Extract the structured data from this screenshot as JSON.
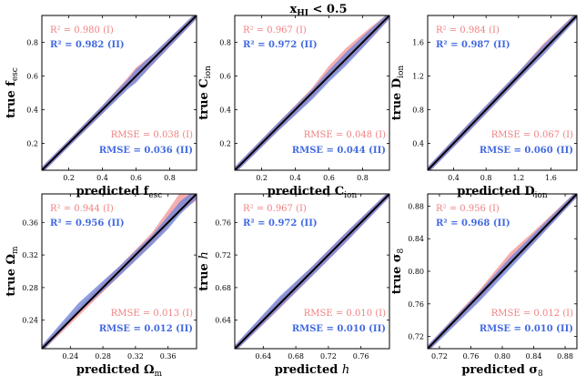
{
  "figure": {
    "title": "x",
    "title_sub": "HI",
    "title_rest": " < 0.5",
    "colors": {
      "model_I": "#f08080",
      "model_II": "#4169e1",
      "line": "#000000",
      "band_I": "#f4a0a0",
      "band_II": "#6a80d8"
    }
  },
  "chart_data": [
    {
      "type": "line",
      "xlabel": "predicted f",
      "xlabel_sub": "esc",
      "xlabel_italic": false,
      "ylabel": "true f",
      "ylabel_sub": "esc",
      "ylabel_italic": false,
      "xlim": [
        0.04,
        0.96
      ],
      "ylim": [
        0.04,
        0.96
      ],
      "xticks": [
        0.2,
        0.4,
        0.6,
        0.8
      ],
      "xtick_labels": [
        "0.2",
        "0.4",
        "0.6",
        "0.8"
      ],
      "yticks": [
        0.2,
        0.4,
        0.6,
        0.8
      ],
      "ytick_labels": [
        "0.2",
        "0.4",
        "0.6",
        "0.8"
      ],
      "r2_I": "R² = 0.980 (I)",
      "r2_II": "R² = 0.982 (II)",
      "rmse_I": "RMSE = 0.038 (I)",
      "rmse_II": "RMSE = 0.036 (II)",
      "series": [
        {
          "name": "I",
          "x": [
            0.04,
            0.2,
            0.4,
            0.55,
            0.6,
            0.7,
            0.96
          ],
          "y": [
            0.04,
            0.2,
            0.4,
            0.56,
            0.61,
            0.7,
            0.96
          ],
          "halfwidth": [
            0.02,
            0.02,
            0.025,
            0.03,
            0.04,
            0.03,
            0.02
          ]
        },
        {
          "name": "II",
          "x": [
            0.04,
            0.2,
            0.4,
            0.55,
            0.6,
            0.7,
            0.96
          ],
          "y": [
            0.04,
            0.2,
            0.4,
            0.55,
            0.6,
            0.7,
            0.96
          ],
          "halfwidth": [
            0.02,
            0.02,
            0.025,
            0.03,
            0.04,
            0.03,
            0.02
          ]
        }
      ]
    },
    {
      "type": "line",
      "xlabel": "predicted C",
      "xlabel_sub": "ion",
      "xlabel_italic": false,
      "ylabel": "true C",
      "ylabel_sub": "ion",
      "ylabel_italic": false,
      "xlim": [
        0.04,
        0.96
      ],
      "ylim": [
        0.04,
        0.96
      ],
      "xticks": [
        0.2,
        0.4,
        0.6,
        0.8
      ],
      "xtick_labels": [
        "0.2",
        "0.4",
        "0.6",
        "0.8"
      ],
      "yticks": [
        0.2,
        0.4,
        0.6,
        0.8
      ],
      "ytick_labels": [
        "0.2",
        "0.4",
        "0.6",
        "0.8"
      ],
      "r2_I": "R² = 0.967 (I)",
      "r2_II": "R² = 0.972 (II)",
      "rmse_I": "RMSE = 0.048 (I)",
      "rmse_II": "RMSE = 0.044 (II)",
      "series": [
        {
          "name": "I",
          "x": [
            0.04,
            0.3,
            0.5,
            0.6,
            0.7,
            0.8,
            0.96
          ],
          "y": [
            0.04,
            0.3,
            0.5,
            0.62,
            0.72,
            0.81,
            0.96
          ],
          "halfwidth": [
            0.02,
            0.025,
            0.03,
            0.04,
            0.045,
            0.04,
            0.02
          ]
        },
        {
          "name": "II",
          "x": [
            0.04,
            0.3,
            0.5,
            0.6,
            0.7,
            0.8,
            0.96
          ],
          "y": [
            0.04,
            0.3,
            0.49,
            0.6,
            0.7,
            0.8,
            0.96
          ],
          "halfwidth": [
            0.02,
            0.025,
            0.03,
            0.035,
            0.04,
            0.035,
            0.02
          ]
        }
      ]
    },
    {
      "type": "line",
      "xlabel": "predicted D",
      "xlabel_sub": "ion",
      "xlabel_italic": false,
      "ylabel": "true D",
      "ylabel_sub": "ion",
      "ylabel_italic": false,
      "xlim": [
        0.08,
        1.92
      ],
      "ylim": [
        0.08,
        1.92
      ],
      "xticks": [
        0.4,
        0.8,
        1.2,
        1.6
      ],
      "xtick_labels": [
        "0.4",
        "0.8",
        "1.2",
        "1.6"
      ],
      "yticks": [
        0.4,
        0.8,
        1.2,
        1.6
      ],
      "ytick_labels": [
        "0.4",
        "0.8",
        "1.2",
        "1.6"
      ],
      "r2_I": "R² = 0.984 (I)",
      "r2_II": "R² = 0.987 (II)",
      "rmse_I": "RMSE = 0.067 (I)",
      "rmse_II": "RMSE = 0.060 (II)",
      "series": [
        {
          "name": "I",
          "x": [
            0.08,
            0.6,
            1.2,
            1.5,
            1.92
          ],
          "y": [
            0.08,
            0.6,
            1.2,
            1.52,
            1.92
          ],
          "halfwidth": [
            0.04,
            0.05,
            0.05,
            0.06,
            0.04
          ]
        },
        {
          "name": "II",
          "x": [
            0.08,
            0.6,
            1.2,
            1.5,
            1.92
          ],
          "y": [
            0.08,
            0.6,
            1.2,
            1.5,
            1.92
          ],
          "halfwidth": [
            0.04,
            0.05,
            0.05,
            0.06,
            0.04
          ]
        }
      ]
    },
    {
      "type": "line",
      "xlabel": "predicted Ω",
      "xlabel_sub": "m",
      "xlabel_italic": false,
      "ylabel": "true Ω",
      "ylabel_sub": "m",
      "ylabel_italic": false,
      "xlim": [
        0.205,
        0.395
      ],
      "ylim": [
        0.205,
        0.395
      ],
      "xticks": [
        0.24,
        0.28,
        0.32,
        0.36
      ],
      "xtick_labels": [
        "0.24",
        "0.28",
        "0.32",
        "0.36"
      ],
      "yticks": [
        0.24,
        0.28,
        0.32,
        0.36
      ],
      "ytick_labels": [
        "0.24",
        "0.28",
        "0.32",
        "0.36"
      ],
      "r2_I": "R² = 0.944 (I)",
      "r2_II": "R² = 0.956 (II)",
      "rmse_I": "RMSE = 0.013 (I)",
      "rmse_II": "RMSE = 0.012 (II)",
      "series": [
        {
          "name": "I",
          "x": [
            0.205,
            0.25,
            0.3,
            0.34,
            0.36,
            0.375,
            0.395
          ],
          "y": [
            0.205,
            0.25,
            0.3,
            0.34,
            0.365,
            0.385,
            0.395
          ],
          "halfwidth": [
            0.004,
            0.005,
            0.006,
            0.007,
            0.01,
            0.012,
            0.008
          ]
        },
        {
          "name": "II",
          "x": [
            0.205,
            0.25,
            0.3,
            0.34,
            0.36,
            0.375,
            0.395
          ],
          "y": [
            0.205,
            0.255,
            0.3,
            0.338,
            0.36,
            0.378,
            0.395
          ],
          "halfwidth": [
            0.004,
            0.006,
            0.006,
            0.006,
            0.008,
            0.008,
            0.006
          ]
        }
      ]
    },
    {
      "type": "line",
      "xlabel": "predicted h",
      "xlabel_sub": "",
      "xlabel_italic": true,
      "ylabel": "true h",
      "ylabel_sub": "",
      "ylabel_italic": true,
      "xlim": [
        0.605,
        0.795
      ],
      "ylim": [
        0.605,
        0.795
      ],
      "xticks": [
        0.64,
        0.68,
        0.72,
        0.76
      ],
      "xtick_labels": [
        "0.64",
        "0.68",
        "0.72",
        "0.76"
      ],
      "yticks": [
        0.64,
        0.68,
        0.72,
        0.76
      ],
      "ytick_labels": [
        "0.64",
        "0.68",
        "0.72",
        "0.76"
      ],
      "r2_I": "R² = 0.967 (I)",
      "r2_II": "R² = 0.972 (II)",
      "rmse_I": "RMSE = 0.010 (I)",
      "rmse_II": "RMSE = 0.010 (II)",
      "series": [
        {
          "name": "I",
          "x": [
            0.605,
            0.66,
            0.7,
            0.74,
            0.795
          ],
          "y": [
            0.605,
            0.66,
            0.7,
            0.74,
            0.795
          ],
          "halfwidth": [
            0.004,
            0.006,
            0.006,
            0.006,
            0.004
          ]
        },
        {
          "name": "II",
          "x": [
            0.605,
            0.66,
            0.7,
            0.74,
            0.795
          ],
          "y": [
            0.605,
            0.662,
            0.7,
            0.74,
            0.795
          ],
          "halfwidth": [
            0.004,
            0.007,
            0.006,
            0.006,
            0.004
          ]
        }
      ]
    },
    {
      "type": "line",
      "xlabel": "predicted σ",
      "xlabel_sub": "8",
      "xlabel_italic": false,
      "ylabel": "true σ",
      "ylabel_sub": "8",
      "ylabel_italic": false,
      "xlim": [
        0.705,
        0.895
      ],
      "ylim": [
        0.705,
        0.895
      ],
      "xticks": [
        0.72,
        0.76,
        0.8,
        0.84,
        0.88
      ],
      "xtick_labels": [
        "0.72",
        "0.76",
        "0.80",
        "0.84",
        "0.88"
      ],
      "yticks": [
        0.72,
        0.76,
        0.8,
        0.84,
        0.88
      ],
      "ytick_labels": [
        "0.72",
        "0.76",
        "0.80",
        "0.84",
        "0.88"
      ],
      "r2_I": "R² = 0.956 (I)",
      "r2_II": "R² = 0.968 (II)",
      "rmse_I": "RMSE = 0.012 (I)",
      "rmse_II": "RMSE = 0.010 (II)",
      "series": [
        {
          "name": "I",
          "x": [
            0.705,
            0.77,
            0.81,
            0.84,
            0.895
          ],
          "y": [
            0.705,
            0.77,
            0.815,
            0.842,
            0.895
          ],
          "halfwidth": [
            0.004,
            0.006,
            0.008,
            0.007,
            0.004
          ]
        },
        {
          "name": "II",
          "x": [
            0.705,
            0.77,
            0.81,
            0.84,
            0.895
          ],
          "y": [
            0.705,
            0.768,
            0.81,
            0.84,
            0.895
          ],
          "halfwidth": [
            0.004,
            0.006,
            0.007,
            0.006,
            0.004
          ]
        }
      ]
    }
  ]
}
